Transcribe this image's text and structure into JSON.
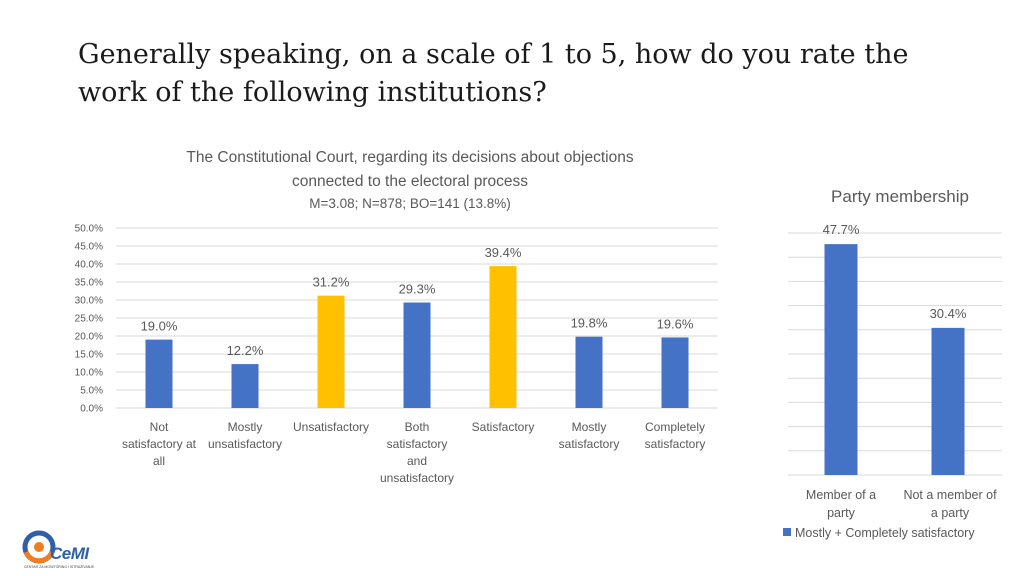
{
  "slide": {
    "title": "Generally speaking, on a scale of 1 to 5, how do you rate the work of the following institutions?"
  },
  "logo": {
    "name": "CeMI",
    "tagline": "CENTAR ZA MONITORING I ISTRAŽIVANJE"
  },
  "colors": {
    "blue": "#4472c4",
    "gold": "#ffc000",
    "grid": "#d9d9d9",
    "text": "#595959"
  },
  "chart_data": [
    {
      "type": "bar",
      "title_line1": "The Constitutional Court, regarding its decisions about objections",
      "title_line2": "connected to the electoral process",
      "subtitle": "M=3.08; N=878; BO=141 (13.8%)",
      "categories": [
        [
          "Not",
          "satisfactory at",
          "all"
        ],
        [
          "Mostly",
          "unsatisfactory"
        ],
        [
          "Unsatisfactory"
        ],
        [
          "Both",
          "satisfactory",
          "and",
          "unsatisfactory"
        ],
        [
          "Satisfactory"
        ],
        [
          "Mostly",
          "satisfactory"
        ],
        [
          "Completely",
          "satisfactory"
        ]
      ],
      "values": [
        19.0,
        12.2,
        31.2,
        29.3,
        39.4,
        19.8,
        19.6
      ],
      "labels": [
        "19.0%",
        "12.2%",
        "31.2%",
        "29.3%",
        "39.4%",
        "19.8%",
        "19.6%"
      ],
      "bar_colors": [
        "blue",
        "blue",
        "gold",
        "blue",
        "gold",
        "blue",
        "blue"
      ],
      "ylim": [
        0,
        50
      ],
      "yticks": [
        "0.0%",
        "5.0%",
        "10.0%",
        "15.0%",
        "20.0%",
        "25.0%",
        "30.0%",
        "35.0%",
        "40.0%",
        "45.0%",
        "50.0%"
      ],
      "grid": true
    },
    {
      "type": "bar",
      "title": "Party membership",
      "categories": [
        [
          "Member of a",
          "party"
        ],
        [
          "Not a member of",
          "a party"
        ]
      ],
      "series": [
        {
          "name": "Mostly + Completely satisfactory",
          "values": [
            47.7,
            30.4
          ]
        }
      ],
      "labels": [
        "47.7%",
        "30.4%"
      ],
      "ylim": [
        0,
        50
      ],
      "legend": "bottom",
      "grid": true
    }
  ]
}
